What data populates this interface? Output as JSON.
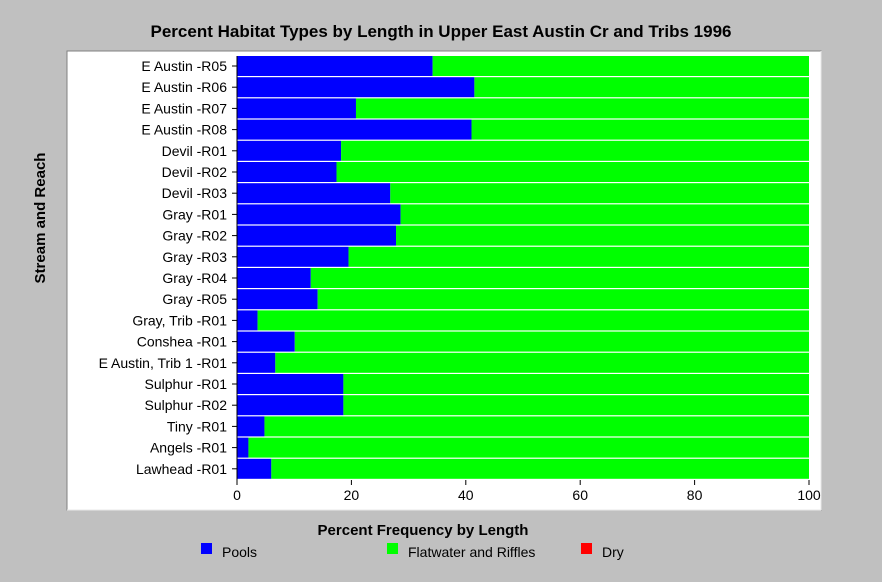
{
  "colors": {
    "background": "#c0c0c0",
    "plot_background": "#ffffff",
    "pools": "#0000ff",
    "flatwater": "#00ff00",
    "dry": "#ff0000"
  },
  "chart_data": {
    "type": "bar",
    "orientation": "horizontal",
    "stacked": true,
    "title": "Percent Habitat Types by Length in Upper East Austin Cr and Tribs 1996",
    "xlabel": "Percent Frequency by Length",
    "ylabel": "Stream and Reach",
    "xlim": [
      0,
      100
    ],
    "xticks": [
      0,
      20,
      40,
      60,
      80,
      100
    ],
    "grid": false,
    "legend_position": "bottom",
    "categories": [
      "E Austin -R05",
      "E Austin -R06",
      "E Austin -R07",
      "E Austin -R08",
      "Devil -R01",
      "Devil -R02",
      "Devil -R03",
      "Gray -R01",
      "Gray -R02",
      "Gray -R03",
      "Gray -R04",
      "Gray -R05",
      "Gray, Trib -R01",
      "Conshea -R01",
      "E Austin, Trib 1 -R01",
      "Sulphur -R01",
      "Sulphur -R02",
      "Tiny -R01",
      "Angels -R01",
      "Lawhead -R01"
    ],
    "series": [
      {
        "name": "Pools",
        "color": "#0000ff",
        "values": [
          34.2,
          41.5,
          20.8,
          41.0,
          18.2,
          17.4,
          26.8,
          28.6,
          27.8,
          19.5,
          12.9,
          14.1,
          3.6,
          10.1,
          6.7,
          18.6,
          18.6,
          4.8,
          2.0,
          6.0
        ]
      },
      {
        "name": "Flatwater and Riffles",
        "color": "#00ff00",
        "values": [
          65.8,
          58.5,
          79.2,
          59.0,
          81.8,
          82.6,
          73.2,
          71.4,
          72.2,
          80.5,
          87.1,
          85.9,
          96.4,
          89.9,
          93.3,
          81.4,
          81.4,
          95.2,
          98.0,
          94.0
        ]
      },
      {
        "name": "Dry",
        "color": "#ff0000",
        "values": [
          0,
          0,
          0,
          0,
          0,
          0,
          0,
          0,
          0,
          0,
          0,
          0,
          0,
          0,
          0,
          0,
          0,
          0,
          0,
          0
        ]
      }
    ]
  }
}
